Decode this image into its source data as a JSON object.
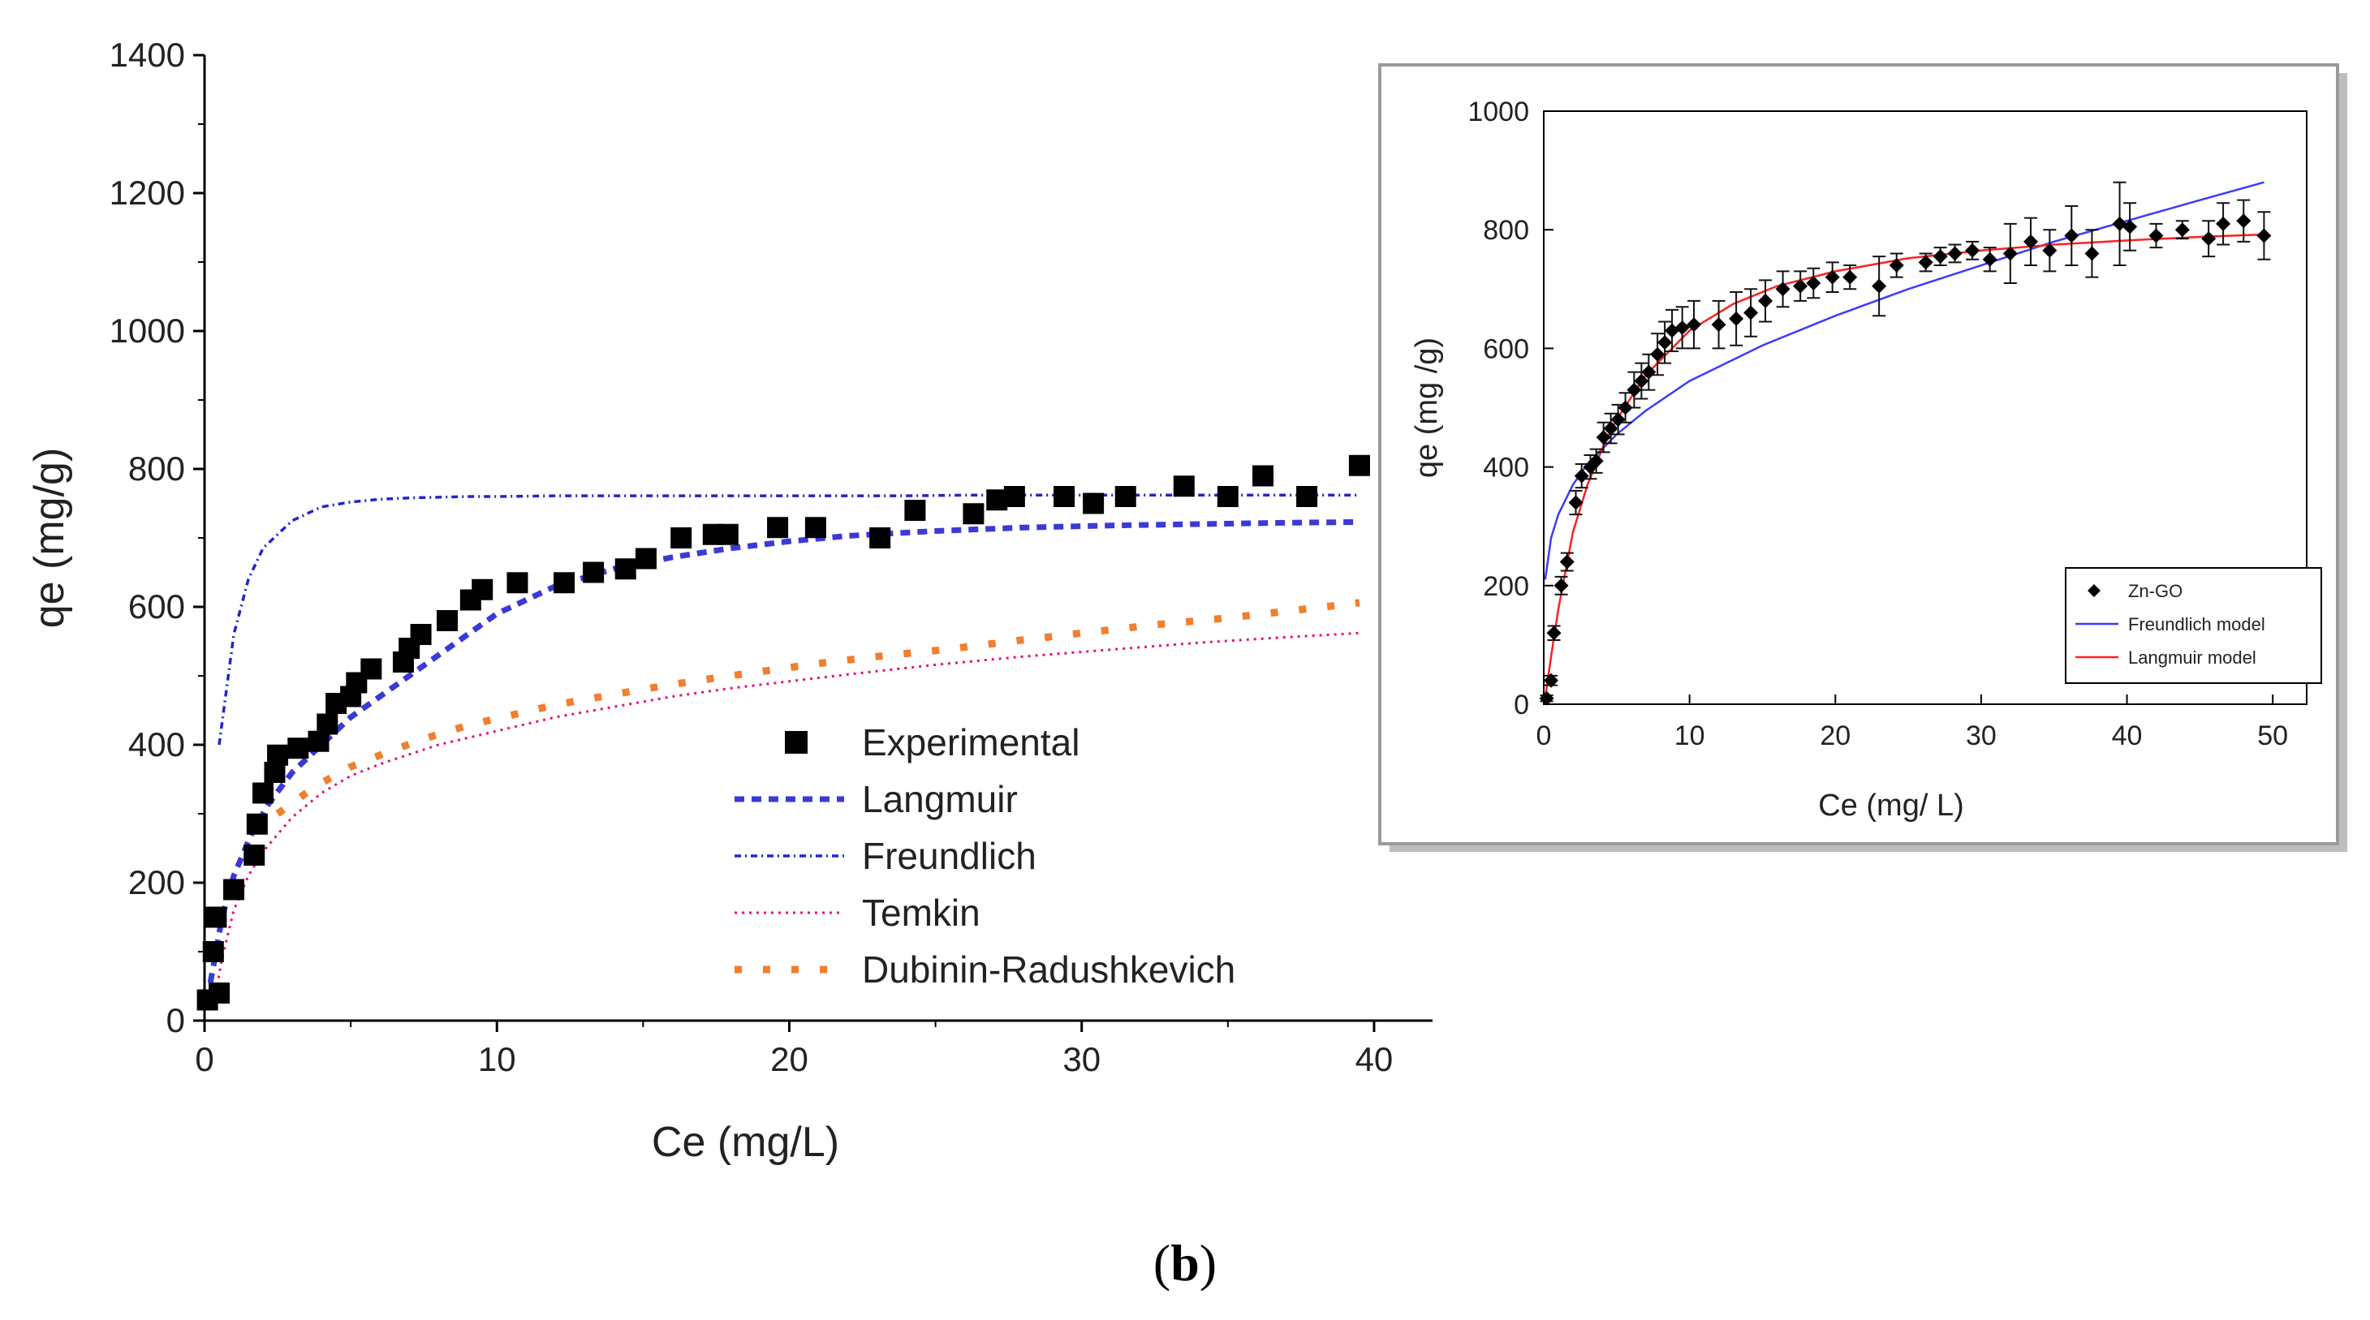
{
  "figure": {
    "label_open": "(",
    "label": "b",
    "label_close": ")"
  },
  "chart_data": [
    {
      "type": "scatter",
      "title": "",
      "xlabel": "Ce (mg/L)",
      "ylabel": "qe (mg/g)",
      "xlim": [
        0,
        42
      ],
      "ylim": [
        0,
        1400
      ],
      "x_ticks": [
        "0",
        "10",
        "20",
        "30",
        "40"
      ],
      "y_ticks": [
        "0",
        "200",
        "400",
        "600",
        "800",
        "1000",
        "1200",
        "1400"
      ],
      "legend_position": "lower-right",
      "series": [
        {
          "name": "Experimental",
          "kind": "markers",
          "color": "#000000",
          "x": [
            0.1,
            0.3,
            0.4,
            0.5,
            1.0,
            1.7,
            1.8,
            2.0,
            2.4,
            2.5,
            3.2,
            3.9,
            4.2,
            4.5,
            5.0,
            5.2,
            5.7,
            6.8,
            7.0,
            7.4,
            8.3,
            9.1,
            9.5,
            10.7,
            12.3,
            13.3,
            14.4,
            15.1,
            16.3,
            17.4,
            17.9,
            19.6,
            20.9,
            23.1,
            24.3,
            26.3,
            27.1,
            27.7,
            29.4,
            30.4,
            31.5,
            33.5,
            35.0,
            36.2,
            37.7,
            39.5
          ],
          "y": [
            30,
            100,
            150,
            40,
            190,
            240,
            285,
            330,
            360,
            385,
            395,
            405,
            430,
            460,
            470,
            490,
            510,
            520,
            540,
            560,
            580,
            610,
            625,
            635,
            635,
            650,
            655,
            670,
            700,
            705,
            705,
            715,
            715,
            700,
            740,
            735,
            755,
            760,
            760,
            750,
            760,
            775,
            760,
            790,
            760,
            805
          ]
        },
        {
          "name": "Langmuir",
          "kind": "dash",
          "color": "#3a3ad6",
          "x": [
            0.2,
            0.6,
            1.0,
            1.6,
            2.2,
            3.0,
            4.0,
            5.0,
            6.0,
            7.0,
            8.0,
            9.0,
            10.0,
            12.0,
            14.0,
            16.0,
            18.0,
            20.0,
            22.0,
            25.0,
            28.0,
            31.0,
            34.0,
            37.0,
            39.5
          ],
          "y": [
            55,
            150,
            210,
            270,
            315,
            360,
            400,
            440,
            470,
            500,
            530,
            560,
            590,
            630,
            655,
            672,
            685,
            695,
            703,
            710,
            715,
            718,
            720,
            722,
            723
          ]
        },
        {
          "name": "Freundlich",
          "kind": "dashdot",
          "color": "#2424cc",
          "x": [
            0.5,
            1.0,
            1.5,
            2.0,
            3.0,
            4.0,
            5.0,
            6.0,
            7.0,
            8.0,
            9.0,
            10.0,
            12.0,
            14.0,
            16.0,
            18.0,
            20.0,
            22.0,
            24.0,
            26.0,
            28.0,
            30.0,
            32.0,
            34.0,
            36.0,
            38.0,
            39.5
          ],
          "y": [
            400,
            560,
            640,
            685,
            725,
            745,
            752,
            756,
            758,
            759,
            760,
            760,
            761,
            761,
            761,
            761,
            761,
            761,
            761,
            762,
            762,
            762,
            762,
            762,
            762,
            762,
            762
          ]
        },
        {
          "name": "Temkin",
          "kind": "dot",
          "color": "#e8107c",
          "x": [
            0.3,
            0.6,
            1.0,
            1.5,
            2.0,
            3.0,
            4.0,
            5.0,
            6.0,
            8.0,
            10.0,
            12.0,
            14.0,
            16.0,
            18.0,
            20.0,
            22.0,
            25.0,
            28.0,
            31.0,
            34.0,
            37.0,
            39.5
          ],
          "y": [
            20,
            90,
            160,
            210,
            245,
            295,
            330,
            355,
            372,
            400,
            420,
            440,
            455,
            470,
            482,
            492,
            502,
            516,
            528,
            538,
            548,
            556,
            562
          ]
        },
        {
          "name": "Dubinin-Radushkevich",
          "kind": "squaredot",
          "color": "#f07f2e",
          "x": [
            2.5,
            3.8,
            5.0,
            6.3,
            7.6,
            9.0,
            10.5,
            12.0,
            13.6,
            15.2,
            17.0,
            19.0,
            21.0,
            23.0,
            25.3,
            27.6,
            30.0,
            32.5,
            35.0,
            37.5,
            39.5
          ],
          "y": [
            300,
            340,
            368,
            390,
            410,
            428,
            443,
            458,
            470,
            482,
            494,
            506,
            518,
            528,
            538,
            550,
            562,
            574,
            584,
            596,
            606
          ]
        }
      ]
    },
    {
      "type": "scatter",
      "title": "",
      "xlabel": "Ce (mg/ L)",
      "ylabel": "qe (mg /g)",
      "xlim": [
        0,
        55
      ],
      "ylim": [
        0,
        1000
      ],
      "x_ticks": [
        "0",
        "10",
        "20",
        "30",
        "40",
        "50"
      ],
      "y_ticks": [
        "0",
        "200",
        "400",
        "600",
        "800",
        "1000"
      ],
      "legend_position": "lower-right",
      "series": [
        {
          "name": "Zn-GO",
          "kind": "markers-errorbars",
          "color": "#000000",
          "x": [
            0.2,
            0.5,
            0.7,
            1.2,
            1.6,
            2.2,
            2.6,
            3.2,
            3.6,
            4.1,
            4.6,
            5.1,
            5.6,
            6.2,
            6.7,
            7.2,
            7.8,
            8.3,
            8.8,
            9.5,
            10.3,
            12.0,
            13.2,
            14.2,
            15.2,
            16.4,
            17.6,
            18.5,
            19.8,
            21.0,
            23.0,
            24.2,
            26.2,
            27.2,
            28.2,
            29.4,
            30.6,
            32.0,
            33.4,
            34.7,
            36.2,
            37.6,
            39.5,
            40.2,
            42.0,
            43.8,
            45.6,
            46.6,
            48.0,
            49.4
          ],
          "y": [
            10,
            40,
            120,
            200,
            240,
            340,
            385,
            400,
            410,
            450,
            465,
            480,
            500,
            530,
            545,
            560,
            590,
            610,
            630,
            635,
            640,
            640,
            650,
            660,
            680,
            700,
            705,
            710,
            720,
            720,
            705,
            740,
            745,
            755,
            760,
            765,
            750,
            760,
            780,
            765,
            790,
            760,
            810,
            805,
            790,
            800,
            785,
            810,
            815,
            790
          ],
          "err": [
            5,
            8,
            12,
            15,
            15,
            20,
            20,
            20,
            20,
            25,
            25,
            25,
            25,
            30,
            30,
            30,
            35,
            35,
            35,
            35,
            40,
            40,
            45,
            40,
            35,
            30,
            25,
            25,
            25,
            20,
            50,
            20,
            15,
            15,
            15,
            15,
            20,
            50,
            40,
            35,
            50,
            40,
            70,
            40,
            20,
            15,
            30,
            35,
            35,
            40
          ]
        },
        {
          "name": "Freundlich  model",
          "kind": "line",
          "color": "#3b3bff",
          "x": [
            0.1,
            0.5,
            1,
            2,
            3,
            4,
            5,
            7,
            10,
            15,
            20,
            25,
            30,
            35,
            40,
            45,
            49.4
          ],
          "y": [
            210,
            280,
            320,
            370,
            405,
            430,
            455,
            495,
            545,
            605,
            655,
            700,
            740,
            780,
            815,
            850,
            880
          ]
        },
        {
          "name": "Langmuir model",
          "kind": "line",
          "color": "#ff2020",
          "x": [
            0.1,
            0.5,
            1,
            2,
            3,
            4,
            5,
            7,
            10,
            13,
            16,
            20,
            25,
            30,
            35,
            40,
            45,
            49.4
          ],
          "y": [
            10,
            80,
            160,
            290,
            370,
            430,
            480,
            555,
            630,
            675,
            705,
            730,
            752,
            765,
            775,
            782,
            788,
            792
          ]
        }
      ]
    }
  ]
}
